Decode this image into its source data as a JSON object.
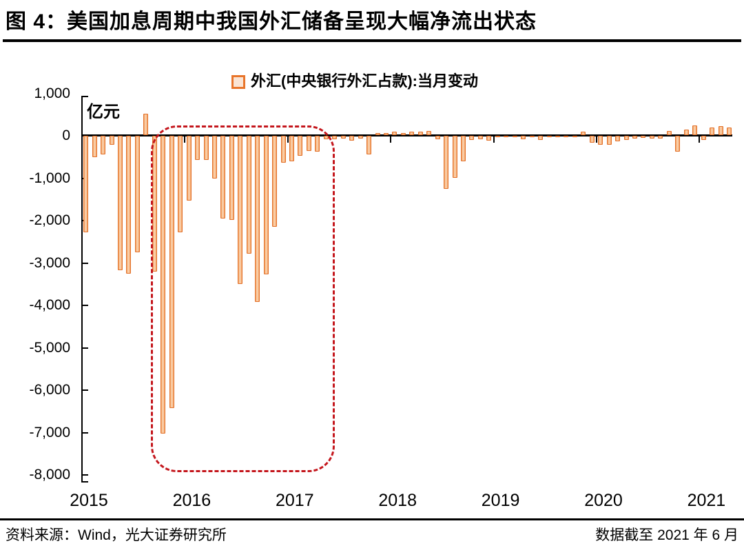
{
  "title": "图 4：美国加息周期中我国外汇储备呈现大幅净流出状态",
  "legend": {
    "label": "外汇(中央银行外汇占款):当月变动"
  },
  "footer": {
    "source": "资料来源：Wind，光大证券研究所",
    "note": "数据截至 2021 年 6 月"
  },
  "chart_data": {
    "type": "bar",
    "title": "",
    "unit_label": "亿元",
    "series_name": "外汇(中央银行外汇占款):当月变动",
    "ylim": [
      -8000,
      1000
    ],
    "grid": false,
    "legend_position": "top-center",
    "y_ticks": [
      {
        "v": 1000,
        "label": "1,000"
      },
      {
        "v": 0,
        "label": "0"
      },
      {
        "v": -1000,
        "label": "-1,000"
      },
      {
        "v": -2000,
        "label": "-2,000"
      },
      {
        "v": -3000,
        "label": "-3,000"
      },
      {
        "v": -4000,
        "label": "-4,000"
      },
      {
        "v": -5000,
        "label": "-5,000"
      },
      {
        "v": -6000,
        "label": "-6,000"
      },
      {
        "v": -7000,
        "label": "-7,000"
      },
      {
        "v": -8000,
        "label": "-8,000"
      }
    ],
    "x_year_labels": [
      "2015",
      "2016",
      "2017",
      "2018",
      "2019",
      "2020",
      "2021"
    ],
    "months": [
      "2015-01",
      "2015-02",
      "2015-03",
      "2015-04",
      "2015-05",
      "2015-06",
      "2015-07",
      "2015-08",
      "2015-09",
      "2015-10",
      "2015-11",
      "2015-12",
      "2016-01",
      "2016-02",
      "2016-03",
      "2016-04",
      "2016-05",
      "2016-06",
      "2016-07",
      "2016-08",
      "2016-09",
      "2016-10",
      "2016-11",
      "2016-12",
      "2017-01",
      "2017-02",
      "2017-03",
      "2017-04",
      "2017-05",
      "2017-06",
      "2017-07",
      "2017-08",
      "2017-09",
      "2017-10",
      "2017-11",
      "2017-12",
      "2018-01",
      "2018-02",
      "2018-03",
      "2018-04",
      "2018-05",
      "2018-06",
      "2018-07",
      "2018-08",
      "2018-09",
      "2018-10",
      "2018-11",
      "2018-12",
      "2019-01",
      "2019-02",
      "2019-03",
      "2019-04",
      "2019-05",
      "2019-06",
      "2019-07",
      "2019-08",
      "2019-09",
      "2019-10",
      "2019-11",
      "2019-12",
      "2020-01",
      "2020-02",
      "2020-03",
      "2020-04",
      "2020-05",
      "2020-06",
      "2020-07",
      "2020-08",
      "2020-09",
      "2020-10",
      "2020-11",
      "2020-12",
      "2021-01",
      "2021-02",
      "2021-03",
      "2021-04"
    ],
    "values": [
      -2300,
      -520,
      -450,
      -230,
      -3190,
      -3270,
      -2760,
      520,
      -3220,
      -7040,
      -6440,
      -2300,
      -1540,
      -590,
      -590,
      -1030,
      -1970,
      -2000,
      -3520,
      -2790,
      -3930,
      -3280,
      -2170,
      -650,
      -620,
      -480,
      -370,
      -390,
      -100,
      -90,
      -85,
      -130,
      -75,
      -455,
      60,
      60,
      90,
      70,
      100,
      90,
      110,
      -90,
      -1270,
      -1000,
      -620,
      -110,
      -100,
      -130,
      -55,
      -50,
      -45,
      -100,
      -50,
      -110,
      -55,
      -50,
      -55,
      -50,
      90,
      -175,
      -230,
      -220,
      -150,
      -115,
      -80,
      -70,
      -80,
      -85,
      120,
      -385,
      140,
      245,
      -120,
      190,
      220,
      200
    ],
    "highlight_box": {
      "from": "2015-09",
      "to": "2017-05",
      "style": "dashed",
      "color": "#C4161C",
      "meaning": "美国加息周期中外汇大幅净流出区间"
    },
    "colors": {
      "bar_border": "#E2702A",
      "bar_fill": "#F3A160",
      "bar_fill_highlight": "#FBD9BA",
      "legend_swatch_fill": "#FAE4D4",
      "axis": "#000000",
      "highlight_box": "#C4161C"
    }
  }
}
